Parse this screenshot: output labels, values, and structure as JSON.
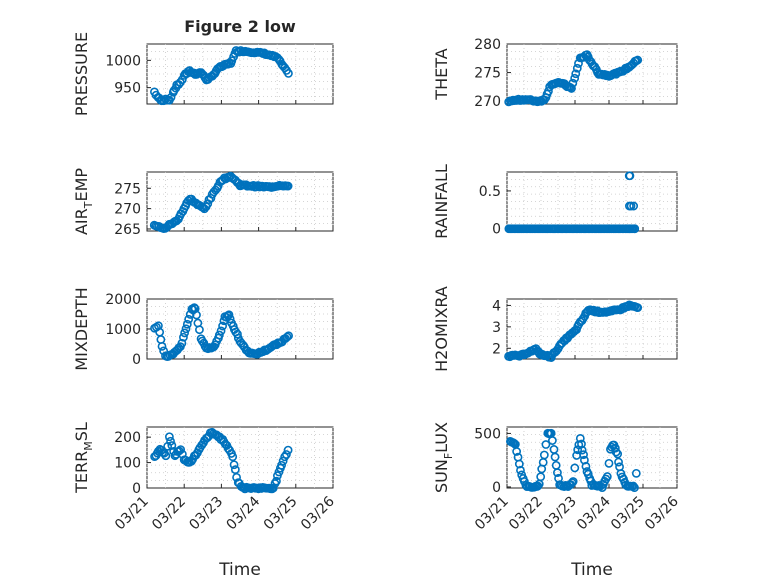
{
  "marker_color": "#0072bd",
  "chart_data": [
    {
      "type": "scatter",
      "title": "Figure 2 low",
      "ylabel": "PRESSURE",
      "ylim": [
        920,
        1030
      ],
      "yticks": [
        950,
        1000
      ],
      "yticklabels": [
        "950",
        "1000"
      ],
      "xlim": [
        0,
        5
      ],
      "xticks": [
        0,
        1,
        2,
        3,
        4,
        5
      ],
      "xticklabels": [
        "03/21",
        "03/22",
        "03/23",
        "03/24",
        "03/25",
        "03/26"
      ],
      "show_xticklabels": false,
      "xlabel": "",
      "grid": true,
      "anchors": [
        [
          0.2,
          942
        ],
        [
          0.3,
          932
        ],
        [
          0.4,
          925
        ],
        [
          0.5,
          930
        ],
        [
          0.6,
          927
        ],
        [
          0.7,
          940
        ],
        [
          0.8,
          955
        ],
        [
          0.9,
          958
        ],
        [
          1.0,
          973
        ],
        [
          1.15,
          980
        ],
        [
          1.3,
          975
        ],
        [
          1.45,
          978
        ],
        [
          1.6,
          965
        ],
        [
          1.75,
          970
        ],
        [
          1.9,
          985
        ],
        [
          2.05,
          990
        ],
        [
          2.25,
          995
        ],
        [
          2.4,
          1017
        ],
        [
          2.6,
          1017
        ],
        [
          2.9,
          1015
        ],
        [
          3.2,
          1012
        ],
        [
          3.5,
          1005
        ],
        [
          3.7,
          985
        ],
        [
          3.8,
          975
        ]
      ]
    },
    {
      "type": "scatter",
      "title": "",
      "ylabel": "THETA",
      "ylim": [
        269.5,
        280
      ],
      "yticks": [
        270,
        275,
        280
      ],
      "yticklabels": [
        "270",
        "275",
        "280"
      ],
      "xlim": [
        0,
        5
      ],
      "xticks": [
        0,
        1,
        2,
        3,
        4,
        5
      ],
      "xticklabels": [
        "03/21",
        "03/22",
        "03/23",
        "03/24",
        "03/25",
        "03/26"
      ],
      "show_xticklabels": false,
      "xlabel": "",
      "grid": true,
      "anchors": [
        [
          0.05,
          270
        ],
        [
          0.5,
          270.3
        ],
        [
          0.9,
          270
        ],
        [
          1.1,
          270.2
        ],
        [
          1.3,
          273
        ],
        [
          1.6,
          273.2
        ],
        [
          1.9,
          272.2
        ],
        [
          2.15,
          277.5
        ],
        [
          2.35,
          278
        ],
        [
          2.7,
          274.8
        ],
        [
          3.0,
          274.5
        ],
        [
          3.3,
          275
        ],
        [
          3.6,
          276
        ],
        [
          3.85,
          277.3
        ]
      ]
    },
    {
      "type": "scatter",
      "title": "",
      "ylabel": "AIR_TEMP",
      "ylim": [
        264.5,
        279
      ],
      "yticks": [
        265,
        270,
        275
      ],
      "yticklabels": [
        "265",
        "270",
        "275"
      ],
      "xlim": [
        0,
        5
      ],
      "xticks": [
        0,
        1,
        2,
        3,
        4,
        5
      ],
      "xticklabels": [
        "03/21",
        "03/22",
        "03/23",
        "03/24",
        "03/25",
        "03/26"
      ],
      "show_xticklabels": false,
      "xlabel": "",
      "grid": true,
      "anchors": [
        [
          0.2,
          266
        ],
        [
          0.45,
          265
        ],
        [
          0.6,
          266
        ],
        [
          0.8,
          267
        ],
        [
          1.0,
          270
        ],
        [
          1.15,
          272.5
        ],
        [
          1.35,
          271
        ],
        [
          1.55,
          270
        ],
        [
          1.8,
          274
        ],
        [
          2.0,
          277
        ],
        [
          2.25,
          278
        ],
        [
          2.5,
          275.8
        ],
        [
          2.9,
          275.5
        ],
        [
          3.3,
          275.3
        ],
        [
          3.6,
          275.8
        ],
        [
          3.8,
          275.5
        ]
      ]
    },
    {
      "type": "scatter",
      "title": "",
      "ylabel": "RAINFALL",
      "ylim": [
        -0.03,
        0.75
      ],
      "yticks": [
        0,
        0.5
      ],
      "yticklabels": [
        "0",
        "0.5"
      ],
      "xlim": [
        0,
        5
      ],
      "xticks": [
        0,
        1,
        2,
        3,
        4,
        5
      ],
      "xticklabels": [
        "03/21",
        "03/22",
        "03/23",
        "03/24",
        "03/25",
        "03/26"
      ],
      "show_xticklabels": false,
      "xlabel": "",
      "grid": true,
      "anchors": [
        [
          0.05,
          0
        ],
        [
          3.75,
          0
        ]
      ],
      "extra_points": [
        [
          3.6,
          0.7
        ],
        [
          3.62,
          0.7
        ],
        [
          3.6,
          0.3
        ],
        [
          3.65,
          0.3
        ],
        [
          3.72,
          0.3
        ],
        [
          3.6,
          0
        ],
        [
          3.75,
          0
        ]
      ]
    },
    {
      "type": "scatter",
      "title": "",
      "ylabel": "MIXDEPTH",
      "ylim": [
        0,
        2000
      ],
      "yticks": [
        0,
        1000,
        2000
      ],
      "yticklabels": [
        "0",
        "1000",
        "2000"
      ],
      "xlim": [
        0,
        5
      ],
      "xticks": [
        0,
        1,
        2,
        3,
        4,
        5
      ],
      "xticklabels": [
        "03/21",
        "03/22",
        "03/23",
        "03/24",
        "03/25",
        "03/26"
      ],
      "show_xticklabels": false,
      "xlabel": "",
      "grid": true,
      "anchors": [
        [
          0.2,
          1050
        ],
        [
          0.3,
          1100
        ],
        [
          0.4,
          450
        ],
        [
          0.5,
          80
        ],
        [
          0.7,
          150
        ],
        [
          0.9,
          400
        ],
        [
          1.05,
          1000
        ],
        [
          1.2,
          1650
        ],
        [
          1.3,
          1700
        ],
        [
          1.45,
          700
        ],
        [
          1.6,
          350
        ],
        [
          1.8,
          400
        ],
        [
          1.95,
          800
        ],
        [
          2.1,
          1400
        ],
        [
          2.2,
          1450
        ],
        [
          2.35,
          1000
        ],
        [
          2.5,
          600
        ],
        [
          2.7,
          250
        ],
        [
          2.9,
          150
        ],
        [
          3.2,
          300
        ],
        [
          3.4,
          450
        ],
        [
          3.6,
          550
        ],
        [
          3.8,
          800
        ]
      ]
    },
    {
      "type": "scatter",
      "title": "",
      "ylabel": "H2OMIXRA",
      "ylim": [
        1.5,
        4.3
      ],
      "yticks": [
        2,
        3,
        4
      ],
      "yticklabels": [
        "2",
        "3",
        "4"
      ],
      "xlim": [
        0,
        5
      ],
      "xticks": [
        0,
        1,
        2,
        3,
        4,
        5
      ],
      "xticklabels": [
        "03/21",
        "03/22",
        "03/23",
        "03/24",
        "03/25",
        "03/26"
      ],
      "show_xticklabels": false,
      "xlabel": "",
      "grid": true,
      "anchors": [
        [
          0.05,
          1.65
        ],
        [
          0.4,
          1.65
        ],
        [
          0.6,
          1.8
        ],
        [
          0.85,
          1.95
        ],
        [
          1.0,
          1.7
        ],
        [
          1.3,
          1.6
        ],
        [
          1.5,
          2.0
        ],
        [
          1.7,
          2.4
        ],
        [
          2.0,
          2.8
        ],
        [
          2.2,
          3.3
        ],
        [
          2.4,
          3.8
        ],
        [
          2.7,
          3.7
        ],
        [
          3.0,
          3.7
        ],
        [
          3.3,
          3.8
        ],
        [
          3.6,
          4.0
        ],
        [
          3.85,
          3.9
        ]
      ]
    },
    {
      "type": "scatter",
      "title": "",
      "ylabel": "TERR_MSL",
      "ylim": [
        0,
        240
      ],
      "yticks": [
        0,
        100,
        200
      ],
      "yticklabels": [
        "0",
        "100",
        "200"
      ],
      "xlim": [
        0,
        5
      ],
      "xticks": [
        0,
        1,
        2,
        3,
        4,
        5
      ],
      "xticklabels": [
        "03/21",
        "03/22",
        "03/23",
        "03/24",
        "03/25",
        "03/26"
      ],
      "show_xticklabels": true,
      "xlabel": "",
      "grid": true,
      "anchors": [
        [
          0.2,
          120
        ],
        [
          0.35,
          150
        ],
        [
          0.5,
          130
        ],
        [
          0.6,
          200
        ],
        [
          0.75,
          130
        ],
        [
          0.9,
          150
        ],
        [
          1.0,
          110
        ],
        [
          1.15,
          100
        ],
        [
          1.35,
          140
        ],
        [
          1.55,
          190
        ],
        [
          1.75,
          220
        ],
        [
          1.95,
          200
        ],
        [
          2.15,
          170
        ],
        [
          2.3,
          120
        ],
        [
          2.45,
          20
        ],
        [
          2.6,
          0
        ],
        [
          3.0,
          0
        ],
        [
          3.4,
          0
        ],
        [
          3.55,
          60
        ],
        [
          3.7,
          120
        ],
        [
          3.8,
          150
        ]
      ]
    },
    {
      "type": "scatter",
      "title": "",
      "ylabel": "SUN_FLUX",
      "ylim": [
        -10,
        560
      ],
      "yticks": [
        0,
        500
      ],
      "yticklabels": [
        "0",
        "500"
      ],
      "xlim": [
        0,
        5
      ],
      "xticks": [
        0,
        1,
        2,
        3,
        4,
        5
      ],
      "xticklabels": [
        "03/21",
        "03/22",
        "03/23",
        "03/24",
        "03/25",
        "03/26"
      ],
      "show_xticklabels": true,
      "xlabel": "Time",
      "grid": true,
      "anchors": [
        [
          0.1,
          430
        ],
        [
          0.25,
          400
        ],
        [
          0.4,
          150
        ],
        [
          0.55,
          10
        ],
        [
          0.8,
          0
        ],
        [
          0.95,
          20
        ],
        [
          1.1,
          300
        ],
        [
          1.2,
          500
        ],
        [
          1.3,
          500
        ],
        [
          1.45,
          200
        ],
        [
          1.55,
          20
        ],
        [
          1.8,
          0
        ],
        [
          1.95,
          50
        ],
        [
          2.05,
          300
        ],
        [
          2.15,
          450
        ],
        [
          2.25,
          300
        ],
        [
          2.35,
          150
        ],
        [
          2.5,
          20
        ],
        [
          2.8,
          0
        ],
        [
          2.95,
          100
        ],
        [
          3.05,
          350
        ],
        [
          3.15,
          400
        ],
        [
          3.25,
          300
        ],
        [
          3.35,
          120
        ],
        [
          3.5,
          10
        ],
        [
          3.75,
          0
        ],
        [
          3.8,
          120
        ]
      ]
    }
  ]
}
